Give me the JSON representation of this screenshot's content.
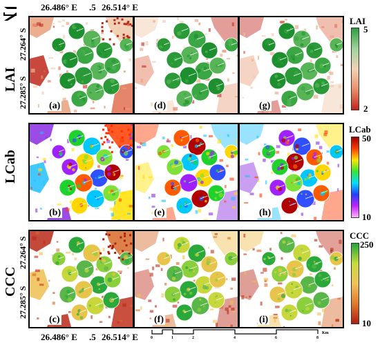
{
  "coords": {
    "top_left": "26.486° E",
    "top_mid": ".5",
    "top_right": "26.514° E",
    "bottom_left": "26.486° E",
    "bottom_mid": ".5",
    "bottom_right": "26.514° E",
    "lat_top": "27.264° S",
    "lat_mid": "27.285° S"
  },
  "row_labels": [
    "LAI",
    "LCab",
    "CCC"
  ],
  "panel_labels": [
    "(a)",
    "(d)",
    "(g)",
    "(b)",
    "(e)",
    "(h)",
    "(c)",
    "(f)",
    "(i)"
  ],
  "colorbars": [
    {
      "title": "LAI",
      "max": "5",
      "min": "2",
      "colors": [
        "#2e9e3e",
        "#9ed49c",
        "#f3d2b5",
        "#e9906a",
        "#c5221a"
      ]
    },
    {
      "title": "LCab",
      "max": "50",
      "min": "10",
      "colors": [
        "#a00000",
        "#ff3c00",
        "#ffe600",
        "#34e534",
        "#00e0ff",
        "#2040ff",
        "#c020ff",
        "#ffb0ff"
      ]
    },
    {
      "title": "CCC",
      "max": "250",
      "min": "10",
      "colors": [
        "#1fa83a",
        "#c8dc3c",
        "#f2c25a",
        "#e07a2a",
        "#b01f12"
      ]
    }
  ],
  "scalebar": {
    "ticks": [
      "0",
      "1",
      "2",
      "4",
      "6",
      "8"
    ],
    "unit": "Km"
  },
  "north_arrow": "N"
}
